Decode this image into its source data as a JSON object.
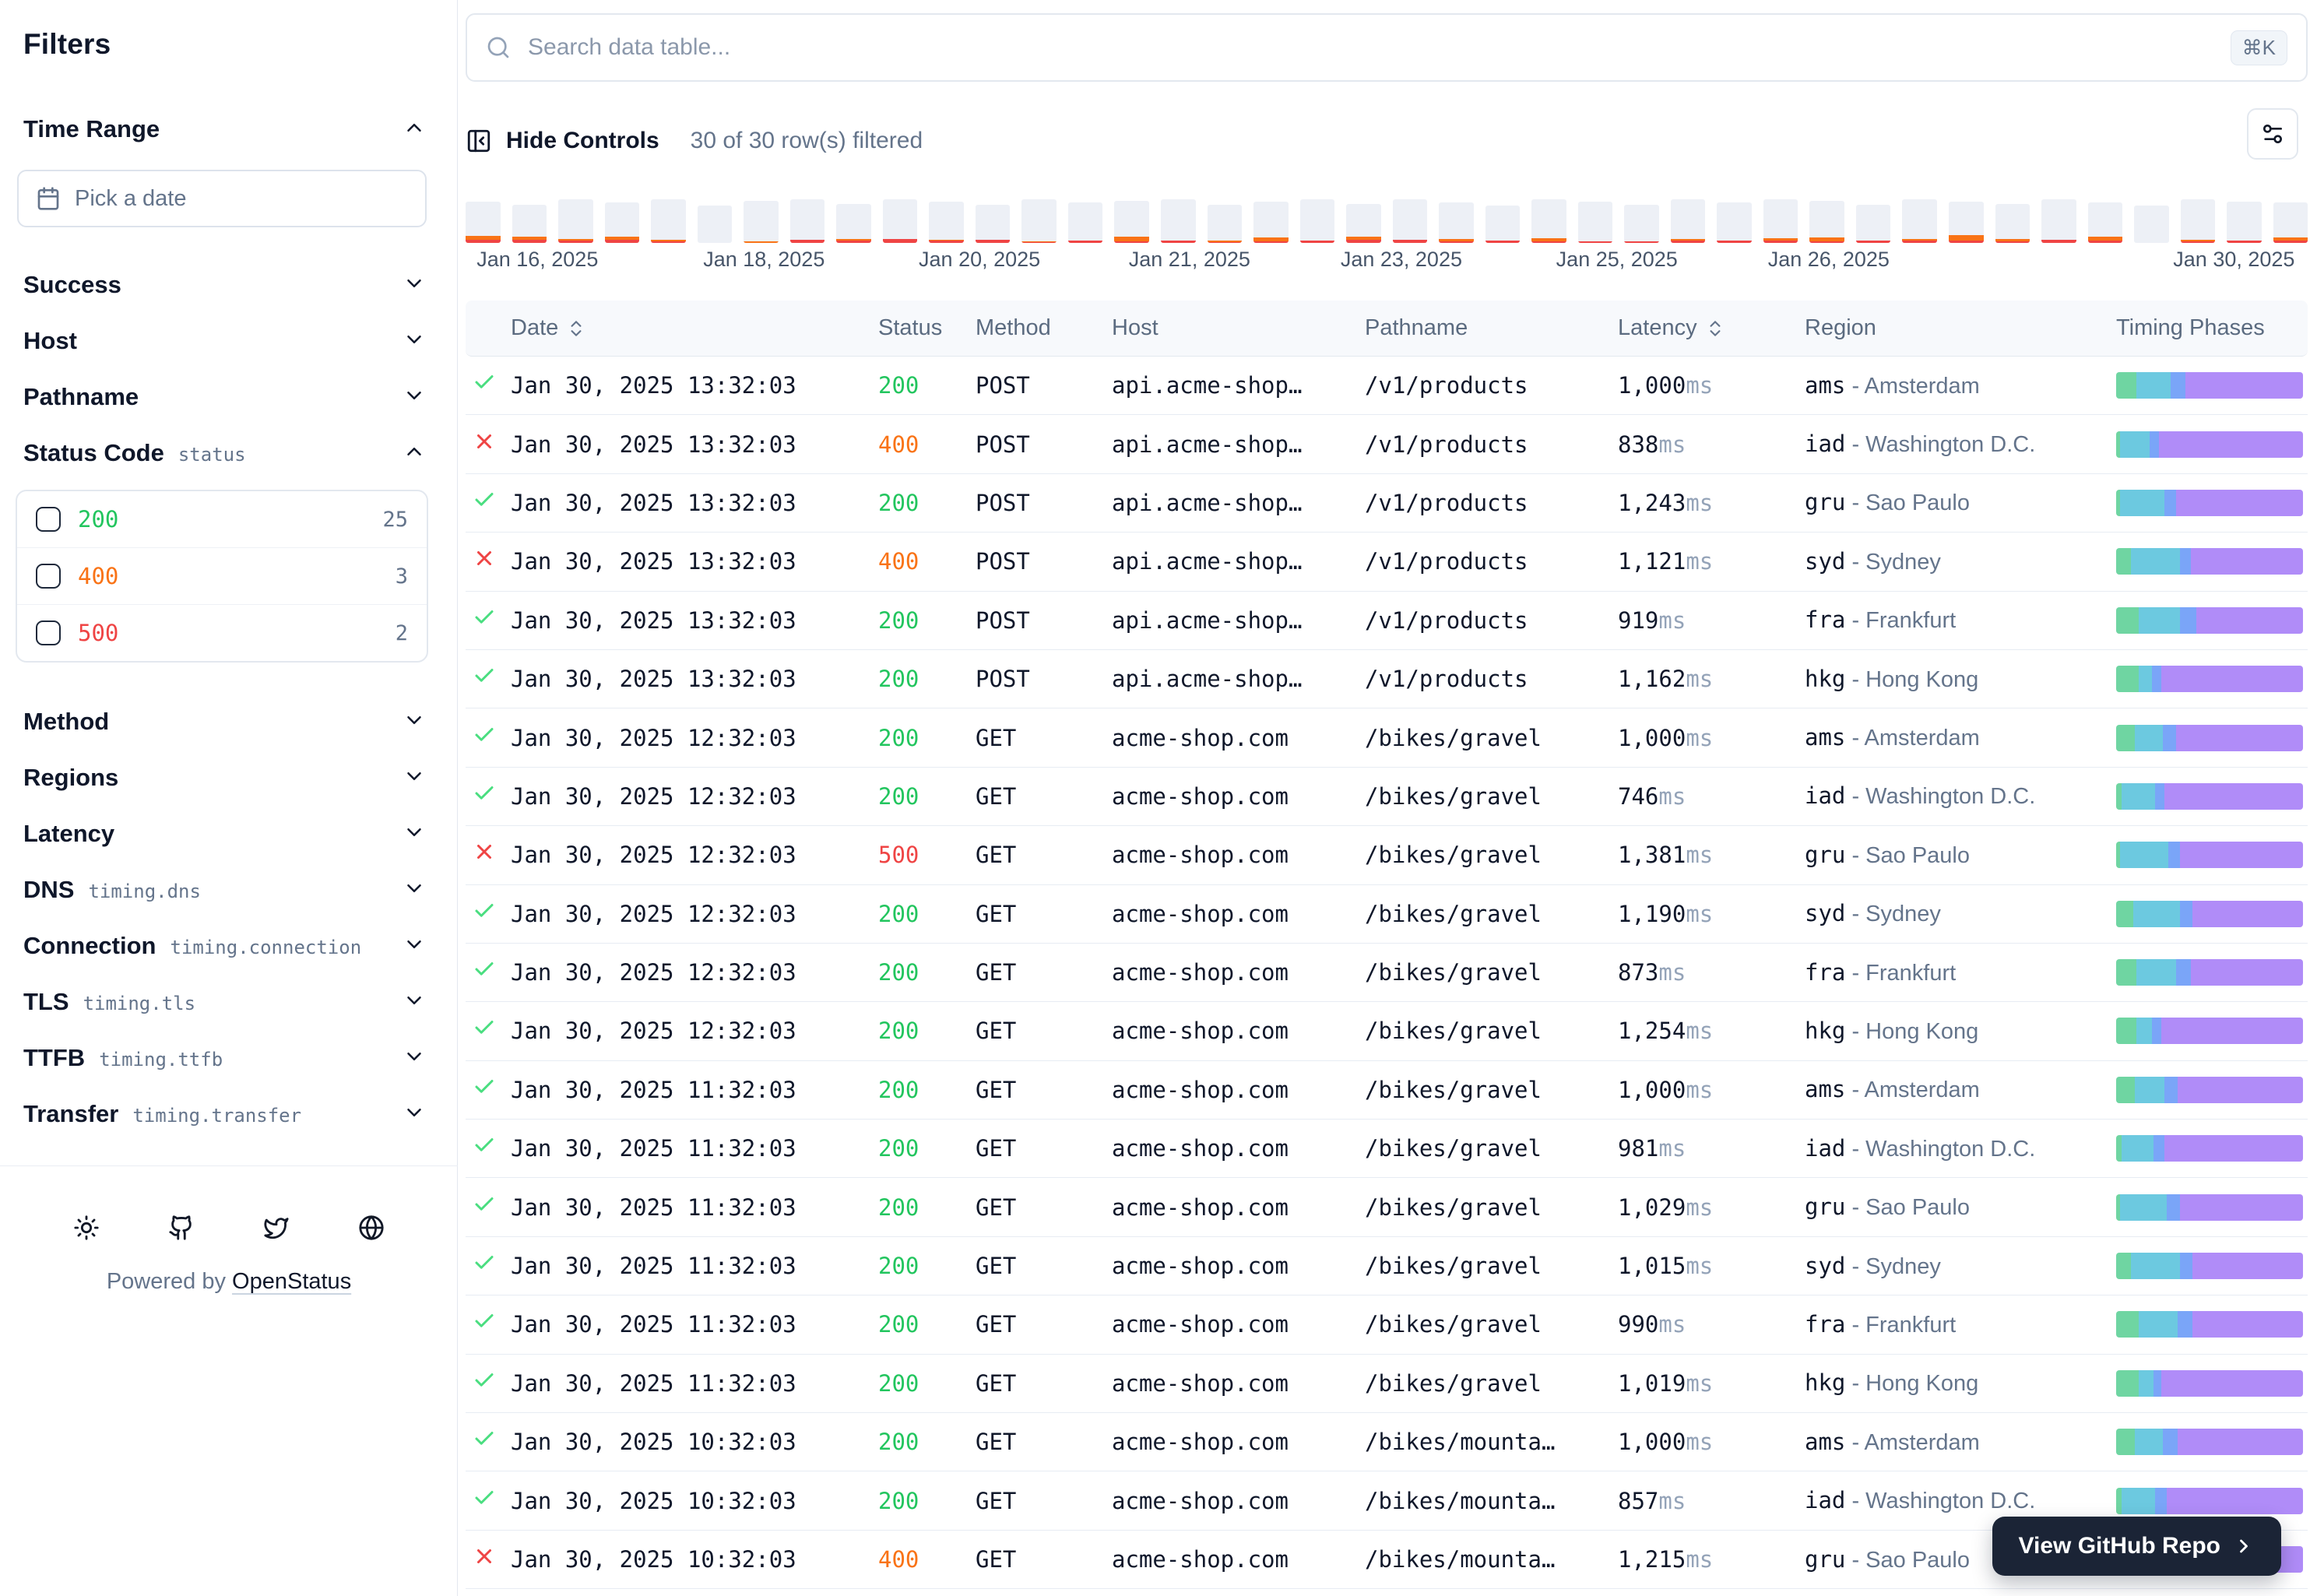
{
  "sidebar": {
    "title": "Filters",
    "time_range": {
      "label": "Time Range",
      "placeholder": "Pick a date"
    },
    "sections_top": [
      {
        "label": "Success"
      },
      {
        "label": "Host"
      },
      {
        "label": "Pathname"
      }
    ],
    "status_code": {
      "label": "Status Code",
      "field": "status",
      "options": [
        {
          "value": "200",
          "count": "25",
          "color": "#22c55e"
        },
        {
          "value": "400",
          "count": "3",
          "color": "#f97316"
        },
        {
          "value": "500",
          "count": "2",
          "color": "#ef4444"
        }
      ]
    },
    "sections_bottom": [
      {
        "label": "Method"
      },
      {
        "label": "Regions"
      },
      {
        "label": "Latency"
      },
      {
        "label": "DNS",
        "field": "timing.dns"
      },
      {
        "label": "Connection",
        "field": "timing.connection"
      },
      {
        "label": "TLS",
        "field": "timing.tls"
      },
      {
        "label": "TTFB",
        "field": "timing.ttfb"
      },
      {
        "label": "Transfer",
        "field": "timing.transfer"
      }
    ],
    "footer": {
      "icons": [
        "sun-icon",
        "github-icon",
        "twitter-icon",
        "globe-icon"
      ],
      "powered_by": "Powered by",
      "brand": "OpenStatus"
    }
  },
  "toolbar": {
    "search_placeholder": "Search data table...",
    "shortcut": "⌘K",
    "hide_controls": "Hide Controls",
    "filter_status": "30 of 30 row(s) filtered"
  },
  "chart_data": {
    "type": "bar",
    "title": "Requests per interval timeline",
    "colors": {
      "base": "#edf0f6",
      "orange": "#f97316",
      "red": "#ef4444"
    },
    "x_labels": [
      {
        "text": "Jan 16, 2025",
        "pos": 3.9
      },
      {
        "text": "Jan 18, 2025",
        "pos": 16.2
      },
      {
        "text": "Jan 20, 2025",
        "pos": 27.9
      },
      {
        "text": "Jan 21, 2025",
        "pos": 39.3
      },
      {
        "text": "Jan 23, 2025",
        "pos": 50.8
      },
      {
        "text": "Jan 25, 2025",
        "pos": 62.5
      },
      {
        "text": "Jan 26, 2025",
        "pos": 74.0
      },
      {
        "text": "Jan 30, 2025",
        "pos": 96.0
      }
    ],
    "bars": [
      {
        "h": 95,
        "o": 8,
        "r": 8
      },
      {
        "h": 88,
        "o": 7,
        "r": 7
      },
      {
        "h": 100,
        "o": 4,
        "r": 5
      },
      {
        "h": 92,
        "o": 6,
        "r": 8
      },
      {
        "h": 100,
        "o": 3,
        "r": 4
      },
      {
        "h": 85,
        "o": 0,
        "r": 0
      },
      {
        "h": 96,
        "o": 4,
        "r": 0
      },
      {
        "h": 100,
        "o": 0,
        "r": 7
      },
      {
        "h": 90,
        "o": 3,
        "r": 6
      },
      {
        "h": 100,
        "o": 0,
        "r": 9
      },
      {
        "h": 95,
        "o": 3,
        "r": 5
      },
      {
        "h": 88,
        "o": 0,
        "r": 7
      },
      {
        "h": 100,
        "o": 2,
        "r": 2
      },
      {
        "h": 92,
        "o": 0,
        "r": 6
      },
      {
        "h": 96,
        "o": 10,
        "r": 4
      },
      {
        "h": 100,
        "o": 0,
        "r": 5
      },
      {
        "h": 88,
        "o": 4,
        "r": 2
      },
      {
        "h": 95,
        "o": 8,
        "r": 4
      },
      {
        "h": 100,
        "o": 0,
        "r": 6
      },
      {
        "h": 90,
        "o": 6,
        "r": 8
      },
      {
        "h": 100,
        "o": 0,
        "r": 7
      },
      {
        "h": 92,
        "o": 6,
        "r": 3
      },
      {
        "h": 85,
        "o": 0,
        "r": 5
      },
      {
        "h": 100,
        "o": 7,
        "r": 4
      },
      {
        "h": 95,
        "o": 0,
        "r": 4
      },
      {
        "h": 88,
        "o": 0,
        "r": 3
      },
      {
        "h": 100,
        "o": 3,
        "r": 6
      },
      {
        "h": 92,
        "o": 0,
        "r": 5
      },
      {
        "h": 100,
        "o": 4,
        "r": 6
      },
      {
        "h": 96,
        "o": 8,
        "r": 4
      },
      {
        "h": 88,
        "o": 0,
        "r": 6
      },
      {
        "h": 100,
        "o": 3,
        "r": 6
      },
      {
        "h": 95,
        "o": 12,
        "r": 6
      },
      {
        "h": 90,
        "o": 5,
        "r": 4
      },
      {
        "h": 100,
        "o": 0,
        "r": 7
      },
      {
        "h": 92,
        "o": 9,
        "r": 5
      },
      {
        "h": 85,
        "o": 0,
        "r": 0
      },
      {
        "h": 100,
        "o": 5,
        "r": 3
      },
      {
        "h": 95,
        "o": 0,
        "r": 6
      },
      {
        "h": 92,
        "o": 6,
        "r": 6
      }
    ]
  },
  "table": {
    "columns": [
      {
        "label": "",
        "sortable": false
      },
      {
        "label": "Date",
        "sortable": true
      },
      {
        "label": "Status",
        "sortable": false
      },
      {
        "label": "Method",
        "sortable": false
      },
      {
        "label": "Host",
        "sortable": false
      },
      {
        "label": "Pathname",
        "sortable": false
      },
      {
        "label": "Latency",
        "sortable": true
      },
      {
        "label": "Region",
        "sortable": false
      },
      {
        "label": "Timing Phases",
        "sortable": false
      }
    ],
    "status_colors": {
      "200": "#22c55e",
      "400": "#f97316",
      "500": "#ef4444"
    },
    "timing_colors": {
      "dns": "#6fd5a2",
      "connection": "#6cc9e0",
      "tls": "#7aa5f8",
      "ttfb": "#b08cf8"
    },
    "latency_unit": "ms",
    "rows": [
      {
        "ok": true,
        "date": "Jan 30, 2025 13:32:03",
        "status": "200",
        "method": "POST",
        "host": "api.acme-shop…",
        "pathname": "/v1/products",
        "latency": "1,000",
        "region_code": "ams",
        "region_city": "Amsterdam",
        "timing": [
          11,
          18,
          8,
          63
        ]
      },
      {
        "ok": false,
        "date": "Jan 30, 2025 13:32:03",
        "status": "400",
        "method": "POST",
        "host": "api.acme-shop…",
        "pathname": "/v1/products",
        "latency": "838",
        "region_code": "iad",
        "region_city": "Washington D.C.",
        "timing": [
          2,
          16,
          5,
          77
        ]
      },
      {
        "ok": true,
        "date": "Jan 30, 2025 13:32:03",
        "status": "200",
        "method": "POST",
        "host": "api.acme-shop…",
        "pathname": "/v1/products",
        "latency": "1,243",
        "region_code": "gru",
        "region_city": "Sao Paulo",
        "timing": [
          2,
          24,
          6,
          68
        ]
      },
      {
        "ok": false,
        "date": "Jan 30, 2025 13:32:03",
        "status": "400",
        "method": "POST",
        "host": "api.acme-shop…",
        "pathname": "/v1/products",
        "latency": "1,121",
        "region_code": "syd",
        "region_city": "Sydney",
        "timing": [
          8,
          26,
          6,
          60
        ]
      },
      {
        "ok": true,
        "date": "Jan 30, 2025 13:32:03",
        "status": "200",
        "method": "POST",
        "host": "api.acme-shop…",
        "pathname": "/v1/products",
        "latency": "919",
        "region_code": "fra",
        "region_city": "Frankfurt",
        "timing": [
          12,
          22,
          9,
          57
        ]
      },
      {
        "ok": true,
        "date": "Jan 30, 2025 13:32:03",
        "status": "200",
        "method": "POST",
        "host": "api.acme-shop…",
        "pathname": "/v1/products",
        "latency": "1,162",
        "region_code": "hkg",
        "region_city": "Hong Kong",
        "timing": [
          12,
          7,
          5,
          76
        ]
      },
      {
        "ok": true,
        "date": "Jan 30, 2025 12:32:03",
        "status": "200",
        "method": "GET",
        "host": "acme-shop.com",
        "pathname": "/bikes/gravel",
        "latency": "1,000",
        "region_code": "ams",
        "region_city": "Amsterdam",
        "timing": [
          10,
          15,
          7,
          68
        ]
      },
      {
        "ok": true,
        "date": "Jan 30, 2025 12:32:03",
        "status": "200",
        "method": "GET",
        "host": "acme-shop.com",
        "pathname": "/bikes/gravel",
        "latency": "746",
        "region_code": "iad",
        "region_city": "Washington D.C.",
        "timing": [
          3,
          18,
          5,
          74
        ]
      },
      {
        "ok": false,
        "date": "Jan 30, 2025 12:32:03",
        "status": "500",
        "method": "GET",
        "host": "acme-shop.com",
        "pathname": "/bikes/gravel",
        "latency": "1,381",
        "region_code": "gru",
        "region_city": "Sao Paulo",
        "timing": [
          2,
          26,
          6,
          66
        ]
      },
      {
        "ok": true,
        "date": "Jan 30, 2025 12:32:03",
        "status": "200",
        "method": "GET",
        "host": "acme-shop.com",
        "pathname": "/bikes/gravel",
        "latency": "1,190",
        "region_code": "syd",
        "region_city": "Sydney",
        "timing": [
          9,
          25,
          7,
          59
        ]
      },
      {
        "ok": true,
        "date": "Jan 30, 2025 12:32:03",
        "status": "200",
        "method": "GET",
        "host": "acme-shop.com",
        "pathname": "/bikes/gravel",
        "latency": "873",
        "region_code": "fra",
        "region_city": "Frankfurt",
        "timing": [
          11,
          21,
          8,
          60
        ]
      },
      {
        "ok": true,
        "date": "Jan 30, 2025 12:32:03",
        "status": "200",
        "method": "GET",
        "host": "acme-shop.com",
        "pathname": "/bikes/gravel",
        "latency": "1,254",
        "region_code": "hkg",
        "region_city": "Hong Kong",
        "timing": [
          11,
          8,
          5,
          76
        ]
      },
      {
        "ok": true,
        "date": "Jan 30, 2025 11:32:03",
        "status": "200",
        "method": "GET",
        "host": "acme-shop.com",
        "pathname": "/bikes/gravel",
        "latency": "1,000",
        "region_code": "ams",
        "region_city": "Amsterdam",
        "timing": [
          10,
          16,
          7,
          67
        ]
      },
      {
        "ok": true,
        "date": "Jan 30, 2025 11:32:03",
        "status": "200",
        "method": "GET",
        "host": "acme-shop.com",
        "pathname": "/bikes/gravel",
        "latency": "981",
        "region_code": "iad",
        "region_city": "Washington D.C.",
        "timing": [
          3,
          17,
          6,
          74
        ]
      },
      {
        "ok": true,
        "date": "Jan 30, 2025 11:32:03",
        "status": "200",
        "method": "GET",
        "host": "acme-shop.com",
        "pathname": "/bikes/gravel",
        "latency": "1,029",
        "region_code": "gru",
        "region_city": "Sao Paulo",
        "timing": [
          2,
          25,
          7,
          66
        ]
      },
      {
        "ok": true,
        "date": "Jan 30, 2025 11:32:03",
        "status": "200",
        "method": "GET",
        "host": "acme-shop.com",
        "pathname": "/bikes/gravel",
        "latency": "1,015",
        "region_code": "syd",
        "region_city": "Sydney",
        "timing": [
          8,
          26,
          7,
          59
        ]
      },
      {
        "ok": true,
        "date": "Jan 30, 2025 11:32:03",
        "status": "200",
        "method": "GET",
        "host": "acme-shop.com",
        "pathname": "/bikes/gravel",
        "latency": "990",
        "region_code": "fra",
        "region_city": "Frankfurt",
        "timing": [
          12,
          21,
          8,
          59
        ]
      },
      {
        "ok": true,
        "date": "Jan 30, 2025 11:32:03",
        "status": "200",
        "method": "GET",
        "host": "acme-shop.com",
        "pathname": "/bikes/gravel",
        "latency": "1,019",
        "region_code": "hkg",
        "region_city": "Hong Kong",
        "timing": [
          12,
          8,
          4,
          76
        ]
      },
      {
        "ok": true,
        "date": "Jan 30, 2025 10:32:03",
        "status": "200",
        "method": "GET",
        "host": "acme-shop.com",
        "pathname": "/bikes/mounta…",
        "latency": "1,000",
        "region_code": "ams",
        "region_city": "Amsterdam",
        "timing": [
          10,
          15,
          8,
          67
        ]
      },
      {
        "ok": true,
        "date": "Jan 30, 2025 10:32:03",
        "status": "200",
        "method": "GET",
        "host": "acme-shop.com",
        "pathname": "/bikes/mounta…",
        "latency": "857",
        "region_code": "iad",
        "region_city": "Washington D.C.",
        "timing": [
          3,
          18,
          6,
          73
        ]
      },
      {
        "ok": false,
        "date": "Jan 30, 2025 10:32:03",
        "status": "400",
        "method": "GET",
        "host": "acme-shop.com",
        "pathname": "/bikes/mounta…",
        "latency": "1,215",
        "region_code": "gru",
        "region_city": "Sao Paulo",
        "timing": [
          2,
          26,
          7,
          65
        ]
      }
    ]
  },
  "github_button": {
    "label": "View GitHub Repo"
  }
}
